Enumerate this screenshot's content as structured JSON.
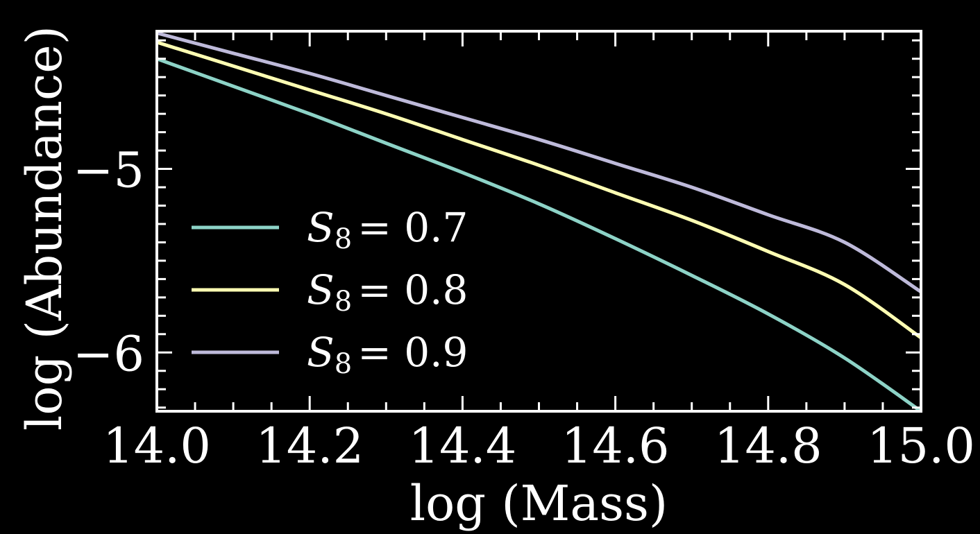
{
  "chart_data": {
    "type": "line",
    "xlabel": "log (Mass)",
    "ylabel": "log (Abundance)",
    "xlim": [
      14.0,
      15.0
    ],
    "ylim": [
      -6.32,
      -4.25
    ],
    "xticks": [
      {
        "value": 14.0,
        "label": "14.0"
      },
      {
        "value": 14.2,
        "label": "14.2"
      },
      {
        "value": 14.4,
        "label": "14.4"
      },
      {
        "value": 14.6,
        "label": "14.6"
      },
      {
        "value": 14.8,
        "label": "14.8"
      },
      {
        "value": 15.0,
        "label": "15.0"
      }
    ],
    "yticks": [
      {
        "value": -5,
        "label": "−5"
      },
      {
        "value": -6,
        "label": "−6"
      }
    ],
    "x": [
      14.0,
      14.1,
      14.2,
      14.3,
      14.4,
      14.5,
      14.6,
      14.7,
      14.8,
      14.9,
      15.0
    ],
    "series": [
      {
        "name": "S8 = 0.7",
        "symbol": "S",
        "subscript": "8",
        "value_text": "= 0.7",
        "color": "#8dd3c7",
        "values": [
          -4.4,
          -4.55,
          -4.7,
          -4.86,
          -5.02,
          -5.19,
          -5.38,
          -5.58,
          -5.79,
          -6.03,
          -6.32
        ]
      },
      {
        "name": "S8 = 0.8",
        "symbol": "S",
        "subscript": "8",
        "value_text": "= 0.8",
        "color": "#ffffb3",
        "values": [
          -4.31,
          -4.44,
          -4.57,
          -4.7,
          -4.84,
          -4.98,
          -5.13,
          -5.28,
          -5.45,
          -5.63,
          -5.92
        ]
      },
      {
        "name": "S8 = 0.9",
        "symbol": "S",
        "subscript": "8",
        "value_text": "= 0.9",
        "color": "#bebada",
        "values": [
          -4.26,
          -4.37,
          -4.48,
          -4.6,
          -4.72,
          -4.84,
          -4.97,
          -5.1,
          -5.25,
          -5.4,
          -5.67
        ]
      }
    ],
    "legend_position": "lower-left",
    "grid": false,
    "background": "#000000",
    "axis_color": "#ffffff"
  }
}
